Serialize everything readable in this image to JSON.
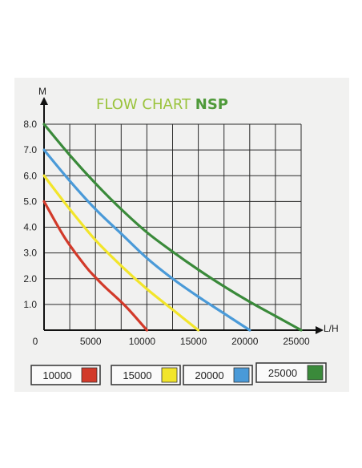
{
  "chart_data": {
    "type": "line",
    "title_light": "FLOW CHART ",
    "title_bold": "NSP",
    "xlabel": "L/H",
    "ylabel": "M",
    "xlim": [
      0,
      25000
    ],
    "ylim": [
      0,
      8
    ],
    "x_ticks": [
      "0",
      "5000",
      "10000",
      "15000",
      "20000",
      "25000"
    ],
    "y_ticks": [
      "1.0",
      "2.0",
      "3.0",
      "4.0",
      "5.0",
      "6.0",
      "7.0",
      "8.0"
    ],
    "grid": true,
    "legend_position": "bottom",
    "series": [
      {
        "name": "10000",
        "color": "#d23a2a",
        "points": [
          [
            0,
            5.0
          ],
          [
            2000,
            3.6
          ],
          [
            4000,
            2.5
          ],
          [
            5000,
            2.05
          ],
          [
            6000,
            1.65
          ],
          [
            8000,
            0.9
          ],
          [
            10000,
            0
          ]
        ]
      },
      {
        "name": "15000",
        "color": "#f2e52a",
        "points": [
          [
            0,
            6.0
          ],
          [
            2500,
            4.7
          ],
          [
            5000,
            3.5
          ],
          [
            7500,
            2.5
          ],
          [
            10000,
            1.6
          ],
          [
            12500,
            0.8
          ],
          [
            15000,
            0
          ]
        ]
      },
      {
        "name": "20000",
        "color": "#4a9ad8",
        "points": [
          [
            0,
            7.0
          ],
          [
            2500,
            5.8
          ],
          [
            5000,
            4.7
          ],
          [
            7500,
            3.75
          ],
          [
            10000,
            2.8
          ],
          [
            12500,
            2.0
          ],
          [
            15000,
            1.3
          ],
          [
            17500,
            0.65
          ],
          [
            20000,
            0
          ]
        ]
      },
      {
        "name": "25000",
        "color": "#3a8a3a",
        "points": [
          [
            0,
            8.0
          ],
          [
            2500,
            6.8
          ],
          [
            5000,
            5.7
          ],
          [
            7500,
            4.7
          ],
          [
            10000,
            3.8
          ],
          [
            12500,
            3.05
          ],
          [
            15000,
            2.35
          ],
          [
            17500,
            1.7
          ],
          [
            20000,
            1.1
          ],
          [
            22500,
            0.55
          ],
          [
            25000,
            0
          ]
        ]
      }
    ]
  }
}
